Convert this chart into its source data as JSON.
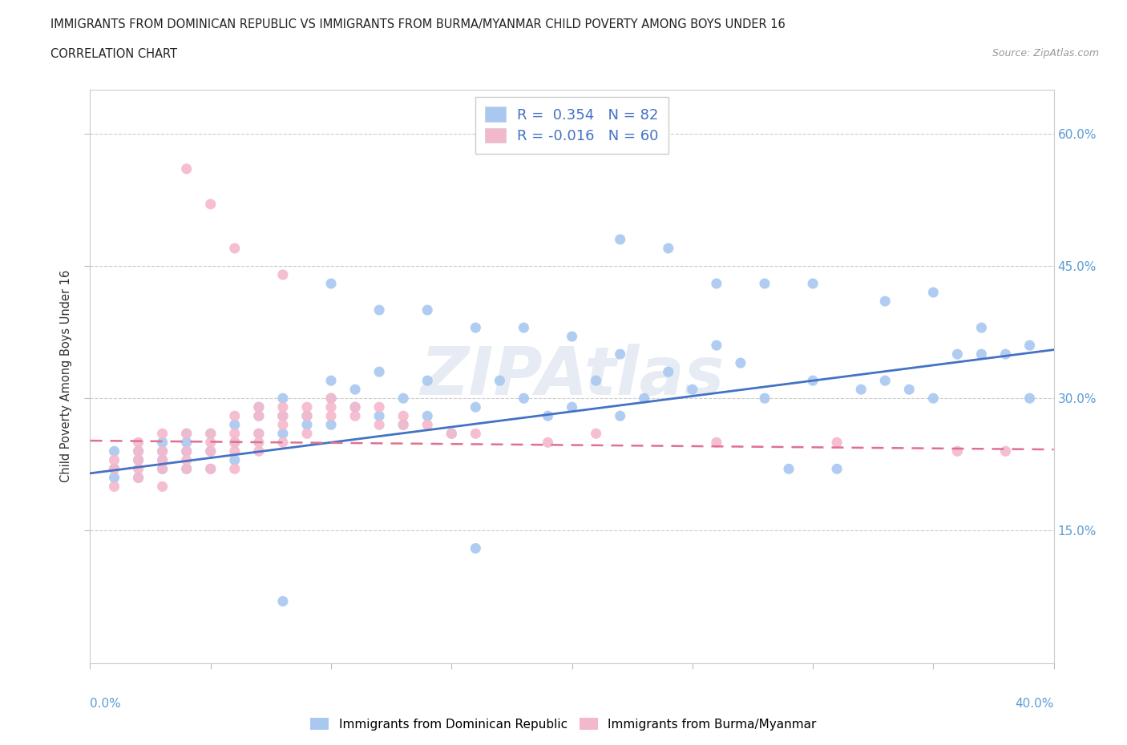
{
  "title_line1": "IMMIGRANTS FROM DOMINICAN REPUBLIC VS IMMIGRANTS FROM BURMA/MYANMAR CHILD POVERTY AMONG BOYS UNDER 16",
  "title_line2": "CORRELATION CHART",
  "source": "Source: ZipAtlas.com",
  "ylabel": "Child Poverty Among Boys Under 16",
  "xlim": [
    0.0,
    0.4
  ],
  "ylim": [
    0.0,
    0.65
  ],
  "yticks": [
    0.15,
    0.3,
    0.45,
    0.6
  ],
  "right_ytick_labels": [
    "15.0%",
    "30.0%",
    "45.0%",
    "60.0%"
  ],
  "legend_blue_label": "R =  0.354   N = 82",
  "legend_pink_label": "R = -0.016   N = 60",
  "blue_color": "#a8c8f0",
  "pink_color": "#f4b8cc",
  "blue_line_color": "#4472c4",
  "pink_line_color": "#e07090",
  "watermark": "ZIPAtlas",
  "blue_line_x0": 0.0,
  "blue_line_y0": 0.215,
  "blue_line_x1": 0.4,
  "blue_line_y1": 0.355,
  "pink_line_x0": 0.0,
  "pink_line_y0": 0.252,
  "pink_line_x1": 0.4,
  "pink_line_y1": 0.242,
  "blue_x": [
    0.01,
    0.01,
    0.01,
    0.02,
    0.02,
    0.02,
    0.03,
    0.03,
    0.03,
    0.03,
    0.04,
    0.04,
    0.04,
    0.04,
    0.05,
    0.05,
    0.05,
    0.06,
    0.06,
    0.06,
    0.07,
    0.07,
    0.07,
    0.08,
    0.08,
    0.08,
    0.09,
    0.09,
    0.1,
    0.1,
    0.1,
    0.11,
    0.11,
    0.12,
    0.12,
    0.13,
    0.13,
    0.14,
    0.14,
    0.15,
    0.16,
    0.17,
    0.18,
    0.19,
    0.2,
    0.21,
    0.22,
    0.22,
    0.23,
    0.24,
    0.25,
    0.26,
    0.27,
    0.28,
    0.29,
    0.3,
    0.31,
    0.32,
    0.33,
    0.34,
    0.35,
    0.36,
    0.37,
    0.38,
    0.39,
    0.1,
    0.12,
    0.14,
    0.16,
    0.18,
    0.2,
    0.22,
    0.24,
    0.26,
    0.28,
    0.3,
    0.33,
    0.35,
    0.37,
    0.39,
    0.16,
    0.08
  ],
  "blue_y": [
    0.22,
    0.24,
    0.21,
    0.23,
    0.21,
    0.24,
    0.24,
    0.22,
    0.25,
    0.23,
    0.26,
    0.24,
    0.22,
    0.25,
    0.24,
    0.26,
    0.22,
    0.27,
    0.25,
    0.23,
    0.28,
    0.26,
    0.29,
    0.28,
    0.26,
    0.3,
    0.28,
    0.27,
    0.3,
    0.32,
    0.27,
    0.29,
    0.31,
    0.28,
    0.33,
    0.3,
    0.27,
    0.32,
    0.28,
    0.26,
    0.29,
    0.32,
    0.3,
    0.28,
    0.29,
    0.32,
    0.35,
    0.28,
    0.3,
    0.33,
    0.31,
    0.36,
    0.34,
    0.3,
    0.22,
    0.32,
    0.22,
    0.31,
    0.32,
    0.31,
    0.3,
    0.35,
    0.35,
    0.35,
    0.36,
    0.43,
    0.4,
    0.4,
    0.38,
    0.38,
    0.37,
    0.48,
    0.47,
    0.43,
    0.43,
    0.43,
    0.41,
    0.42,
    0.38,
    0.3,
    0.13,
    0.07
  ],
  "pink_x": [
    0.01,
    0.01,
    0.01,
    0.02,
    0.02,
    0.02,
    0.02,
    0.02,
    0.03,
    0.03,
    0.03,
    0.03,
    0.03,
    0.04,
    0.04,
    0.04,
    0.04,
    0.05,
    0.05,
    0.05,
    0.05,
    0.06,
    0.06,
    0.06,
    0.06,
    0.06,
    0.07,
    0.07,
    0.07,
    0.07,
    0.07,
    0.08,
    0.08,
    0.08,
    0.08,
    0.09,
    0.09,
    0.09,
    0.1,
    0.1,
    0.1,
    0.11,
    0.11,
    0.12,
    0.12,
    0.13,
    0.13,
    0.14,
    0.15,
    0.16,
    0.19,
    0.21,
    0.26,
    0.31,
    0.36,
    0.38,
    0.04,
    0.05,
    0.06,
    0.08
  ],
  "pink_y": [
    0.23,
    0.22,
    0.2,
    0.25,
    0.23,
    0.22,
    0.24,
    0.21,
    0.26,
    0.24,
    0.23,
    0.22,
    0.2,
    0.26,
    0.24,
    0.23,
    0.22,
    0.26,
    0.25,
    0.24,
    0.22,
    0.28,
    0.26,
    0.25,
    0.24,
    0.22,
    0.29,
    0.28,
    0.26,
    0.25,
    0.24,
    0.29,
    0.28,
    0.27,
    0.25,
    0.29,
    0.28,
    0.26,
    0.3,
    0.29,
    0.28,
    0.29,
    0.28,
    0.29,
    0.27,
    0.28,
    0.27,
    0.27,
    0.26,
    0.26,
    0.25,
    0.26,
    0.25,
    0.25,
    0.24,
    0.24,
    0.56,
    0.52,
    0.47,
    0.44
  ]
}
